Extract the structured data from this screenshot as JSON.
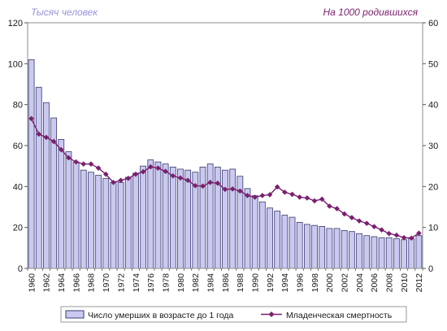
{
  "chart_data": {
    "type": "bar",
    "ylabel": "Тысяч человек",
    "y2label": "На 1000 родившихся",
    "ylim": [
      0,
      120
    ],
    "y2lim": [
      0,
      60
    ],
    "yticks": [
      0,
      20,
      40,
      60,
      80,
      100,
      120
    ],
    "y2ticks": [
      0,
      10,
      20,
      30,
      40,
      50,
      60
    ],
    "x": [
      1960,
      1961,
      1962,
      1963,
      1964,
      1965,
      1966,
      1967,
      1968,
      1969,
      1970,
      1971,
      1972,
      1973,
      1974,
      1975,
      1976,
      1977,
      1978,
      1979,
      1980,
      1981,
      1982,
      1983,
      1984,
      1985,
      1986,
      1987,
      1988,
      1989,
      1990,
      1991,
      1992,
      1993,
      1994,
      1995,
      1996,
      1997,
      1998,
      1999,
      2000,
      2001,
      2002,
      2003,
      2004,
      2005,
      2006,
      2007,
      2008,
      2009,
      2010,
      2011,
      2012
    ],
    "xtick_labels": [
      "1960",
      "1962",
      "1964",
      "1966",
      "1968",
      "1970",
      "1972",
      "1974",
      "1976",
      "1978",
      "1980",
      "1982",
      "1984",
      "1986",
      "1988",
      "1990",
      "1992",
      "1994",
      "1996",
      "1998",
      "2000",
      "2002",
      "2004",
      "2006",
      "2008",
      "2010",
      "2012"
    ],
    "series": [
      {
        "name": "Число умерших в возрасте до 1 года",
        "type": "bar",
        "axis": "left",
        "values": [
          102,
          88.5,
          81,
          73.5,
          63,
          57,
          52,
          48,
          47,
          45.5,
          44,
          42,
          42,
          44.5,
          46.5,
          50,
          53,
          52,
          51,
          49.5,
          48.5,
          48,
          47,
          49.5,
          51,
          49.5,
          48,
          48.5,
          45,
          39,
          35.5,
          32.5,
          29.5,
          28,
          26,
          25,
          22.5,
          21.5,
          21,
          20.5,
          19.5,
          19.5,
          18.5,
          18,
          17,
          16,
          15.5,
          15,
          15,
          14.5,
          14,
          14.5,
          16
        ]
      },
      {
        "name": "Младенческая смертность",
        "type": "line",
        "axis": "right",
        "values": [
          36.6,
          32.8,
          32.0,
          31.0,
          29.0,
          27.0,
          26.0,
          25.5,
          25.5,
          24.5,
          23.0,
          21.0,
          21.5,
          22.0,
          23.0,
          23.6,
          24.8,
          24.5,
          23.7,
          22.6,
          22.1,
          21.5,
          20.2,
          20.1,
          21.0,
          20.8,
          19.3,
          19.4,
          18.9,
          17.8,
          17.4,
          17.8,
          18.0,
          19.9,
          18.6,
          18.1,
          17.4,
          17.2,
          16.5,
          16.9,
          15.2,
          14.6,
          13.3,
          12.4,
          11.6,
          11.0,
          10.2,
          9.4,
          8.5,
          8.1,
          7.5,
          7.4,
          8.6
        ]
      }
    ],
    "legend": "bottom",
    "grid": false,
    "colors": {
      "bar_fill": "#c9c9f2",
      "bar_stroke": "#3a3a6c",
      "line": "#7a1f6f",
      "left_axis_title": "#9494dc",
      "right_axis_title": "#7a1f6f",
      "frame": "#8c8c8c"
    }
  }
}
